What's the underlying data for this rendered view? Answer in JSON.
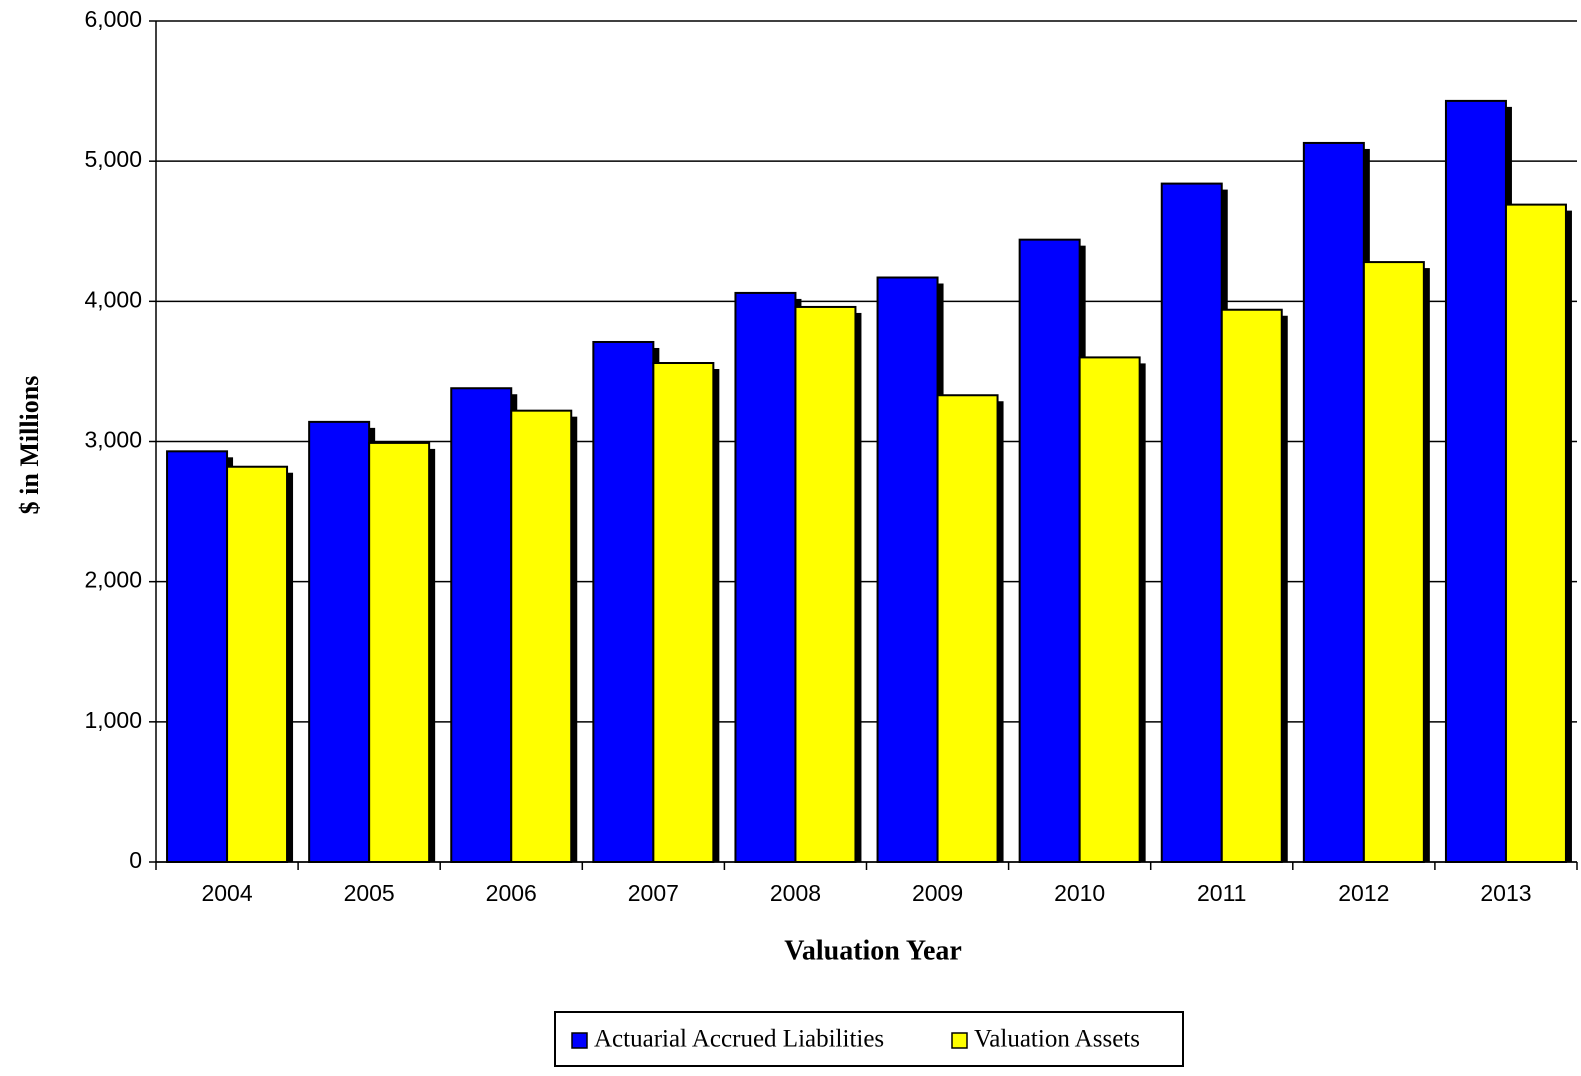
{
  "chart_data": {
    "type": "bar",
    "xlabel": "Valuation Year",
    "ylabel": "$ in Millions",
    "categories": [
      "2004",
      "2005",
      "2006",
      "2007",
      "2008",
      "2009",
      "2010",
      "2011",
      "2012",
      "2013"
    ],
    "series": [
      {
        "name": "Actuarial Accrued Liabilities",
        "color": "#0000ff",
        "values": [
          2930,
          3140,
          3380,
          3710,
          4060,
          4170,
          4440,
          4840,
          5130,
          5430
        ]
      },
      {
        "name": "Valuation Assets",
        "color": "#ffff00",
        "values": [
          2820,
          2990,
          3220,
          3560,
          3960,
          3330,
          3600,
          3940,
          4280,
          4690
        ]
      }
    ],
    "ylim": [
      0,
      6000
    ],
    "yticks": [
      0,
      {
        "value": 1000,
        "label": "1,000"
      },
      {
        "value": 2000,
        "label": "2,000"
      },
      {
        "value": 3000,
        "label": "3,000"
      },
      {
        "value": 4000,
        "label": "4,000"
      },
      {
        "value": 5000,
        "label": "5,000"
      },
      {
        "value": 6000,
        "label": "6,000"
      }
    ],
    "grid": true,
    "legend": "bottom"
  }
}
